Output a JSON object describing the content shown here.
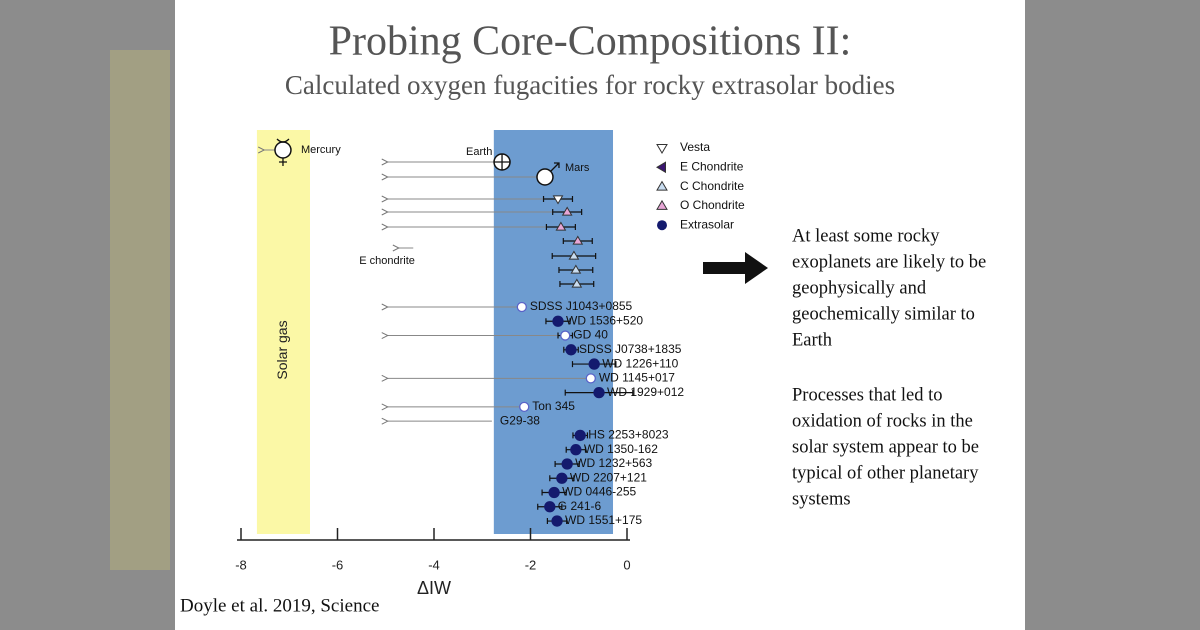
{
  "slide": {
    "title": "Probing Core-Compositions II:",
    "subtitle": "Calculated oxygen fugacities for rocky extrasolar bodies",
    "points": [
      [
        "At least some rocky",
        "exoplanets are likely to be",
        "geophysically and",
        "geochemically similar to",
        "Earth"
      ],
      [
        "Processes that led to",
        "oxidation of rocks in the",
        "solar system appear to be",
        "typical of other planetary",
        "systems"
      ]
    ],
    "citation": "Doyle et al. 2019, Science"
  },
  "chart_data": {
    "type": "scatter",
    "xlabel": "ΔIW",
    "xlim": [
      -8,
      0
    ],
    "xticks": [
      -8,
      -6,
      -4,
      -2,
      0
    ],
    "bands": [
      {
        "label": "Solar gas",
        "range": [
          -7.67,
          -6.57
        ],
        "color": "#fbf8a6"
      },
      {
        "range": [
          -2.76,
          -0.29
        ],
        "color": "#6d9cd0"
      }
    ],
    "series": [
      {
        "labels": [
          "Mercury",
          "Earth",
          "Mars"
        ],
        "markers": [
          "mercury",
          "earth",
          "mars"
        ],
        "values": [
          -7.13,
          -2.59,
          -1.7
        ],
        "errors": [
          null,
          null,
          null
        ],
        "limits": [
          -7.56,
          -5.0,
          -5.0
        ]
      },
      {
        "name": "Vesta",
        "marker": "tri-down",
        "color": "#ffffff",
        "values": [
          -1.43
        ],
        "errors": [
          0.3
        ],
        "limits": [
          -5.0
        ]
      },
      {
        "name": "E Chondrite",
        "marker": "tri-left",
        "color": "#3b1670",
        "labels": [
          "E chondrite"
        ],
        "values": [
          -4.43
        ],
        "errors": [
          null
        ],
        "limits": [
          -4.77
        ]
      },
      {
        "name": "C Chondrite",
        "marker": "tri-up",
        "color": "#c8dcef",
        "values": [
          -1.1,
          -1.06,
          -1.04
        ],
        "errors": [
          0.45,
          0.35,
          0.35
        ],
        "limits": [
          null,
          null,
          null
        ]
      },
      {
        "name": "O Chondrite",
        "marker": "tri-up",
        "color": "#e7a6d6",
        "values": [
          -1.24,
          -1.37,
          -1.02
        ],
        "errors": [
          0.3,
          0.3,
          0.3
        ],
        "limits": [
          -5.0,
          -5.0,
          null
        ]
      },
      {
        "name": "Extrasolar",
        "marker": "circle",
        "color": "#141a6e",
        "labels": [
          "SDSS J1043+0855",
          "WD 1536+520",
          "GD 40",
          "SDSS J0738+1835",
          "WD 1226+110",
          "WD 1145+017",
          "WD 1929+012",
          "Ton 345",
          "G29-38",
          "HS 2253+8023",
          "WD 1350-162",
          "WD 1232+563",
          "WD 2207+121",
          "WD 0446-255",
          "G 241-6",
          "WD 1551+175"
        ],
        "open": [
          true,
          false,
          true,
          false,
          false,
          true,
          false,
          true,
          true,
          false,
          false,
          false,
          false,
          false,
          false,
          false
        ],
        "values": [
          -2.18,
          -1.43,
          -1.28,
          -1.16,
          -0.68,
          -0.75,
          -0.58,
          -2.13,
          -2.8,
          -0.97,
          -1.06,
          -1.24,
          -1.35,
          -1.51,
          -1.6,
          -1.45
        ],
        "errors": [
          null,
          0.25,
          0.15,
          0.15,
          0.45,
          null,
          0.7,
          null,
          null,
          0.15,
          0.2,
          0.25,
          0.25,
          0.25,
          0.25,
          0.2
        ],
        "limits": [
          -5.0,
          null,
          -5.0,
          null,
          null,
          -5.0,
          null,
          -5.0,
          -5.0,
          null,
          null,
          null,
          null,
          null,
          null,
          null
        ]
      }
    ]
  }
}
